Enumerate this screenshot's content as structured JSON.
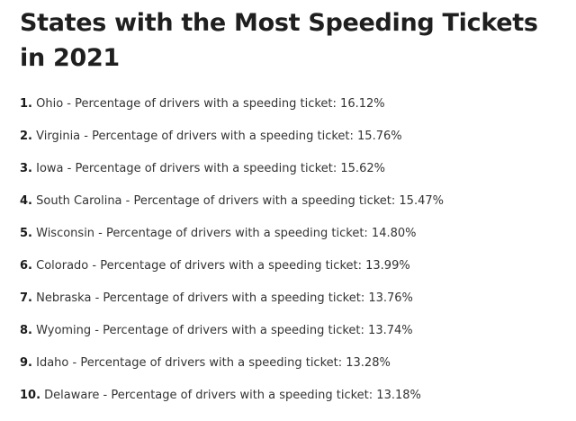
{
  "article": {
    "title": "States with the Most Speeding Tickets in 2021",
    "items": [
      {
        "rank": "1.",
        "text": "Ohio - Percentage of drivers with a speeding ticket: 16.12%"
      },
      {
        "rank": "2.",
        "text": "Virginia - Percentage of drivers with a speeding ticket: 15.76%"
      },
      {
        "rank": "3.",
        "text": "Iowa - Percentage of drivers with a speeding ticket: 15.62%"
      },
      {
        "rank": "4.",
        "text": "South Carolina - Percentage of drivers with a speeding ticket: 15.47%"
      },
      {
        "rank": "5.",
        "text": "Wisconsin - Percentage of drivers with a speeding ticket: 14.80%"
      },
      {
        "rank": "6.",
        "text": "Colorado - Percentage of drivers with a speeding ticket: 13.99%"
      },
      {
        "rank": "7.",
        "text": "Nebraska - Percentage of drivers with a speeding ticket: 13.76%"
      },
      {
        "rank": "8.",
        "text": "Wyoming - Percentage of drivers with a speeding ticket: 13.74%"
      },
      {
        "rank": "9.",
        "text": "Idaho - Percentage of drivers with a speeding ticket: 13.28%"
      },
      {
        "rank": "10.",
        "text": "Delaware - Percentage of drivers with a speeding ticket: 13.18%"
      }
    ]
  }
}
